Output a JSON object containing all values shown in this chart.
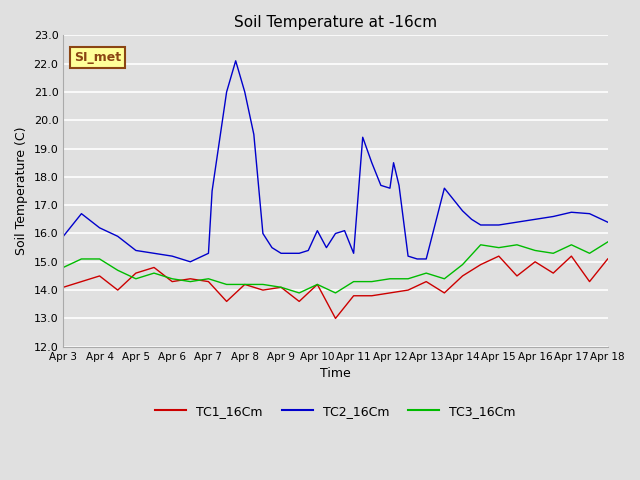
{
  "title": "Soil Temperature at -16cm",
  "xlabel": "Time",
  "ylabel": "Soil Temperature (C)",
  "ylim": [
    12.0,
    23.0
  ],
  "yticks": [
    12.0,
    13.0,
    14.0,
    15.0,
    16.0,
    17.0,
    18.0,
    19.0,
    20.0,
    21.0,
    22.0,
    23.0
  ],
  "x_tick_labels": [
    "Apr 3",
    "Apr 4",
    "Apr 5",
    "Apr 6",
    "Apr 7",
    "Apr 8",
    "Apr 9",
    "Apr 10",
    "Apr 11",
    "Apr 12",
    "Apr 13",
    "Apr 14",
    "Apr 15",
    "Apr 16",
    "Apr 17",
    "Apr 18"
  ],
  "bg_color": "#e0e0e0",
  "plot_bg_color": "#e0e0e0",
  "grid_color": "#ffffff",
  "annotation_text": "SI_met",
  "annotation_bg": "#ffff99",
  "annotation_border": "#8b4513",
  "TC1_color": "#cc0000",
  "TC2_color": "#0000cc",
  "TC3_color": "#00bb00",
  "TC1_label": "TC1_16Cm",
  "TC2_label": "TC2_16Cm",
  "TC3_label": "TC3_16Cm",
  "TC1_x": [
    0,
    0.5,
    1,
    1.5,
    2,
    2.5,
    3,
    3.5,
    4,
    4.5,
    5,
    5.5,
    6,
    6.5,
    7,
    7.5,
    8,
    8.5,
    9,
    9.5,
    10,
    10.5,
    11,
    11.5,
    12,
    12.5,
    13,
    13.5,
    14,
    14.5,
    15
  ],
  "TC1_y": [
    14.1,
    14.3,
    14.5,
    14.0,
    14.6,
    14.8,
    14.3,
    14.4,
    14.3,
    13.6,
    14.2,
    14.0,
    14.1,
    13.6,
    14.2,
    13.0,
    13.8,
    13.8,
    13.9,
    14.0,
    14.3,
    13.9,
    14.5,
    14.9,
    15.2,
    14.5,
    15.0,
    14.6,
    15.2,
    14.3,
    15.1
  ],
  "TC2_x": [
    0,
    0.5,
    1,
    1.5,
    2,
    2.5,
    3,
    3.5,
    4,
    4.1,
    4.5,
    4.75,
    5,
    5.25,
    5.5,
    5.75,
    6,
    6.25,
    6.5,
    6.75,
    7,
    7.25,
    7.5,
    7.75,
    8,
    8.25,
    8.5,
    8.75,
    9,
    9.1,
    9.25,
    9.5,
    9.75,
    10,
    10.5,
    11,
    11.25,
    11.5,
    12,
    12.5,
    13,
    13.5,
    14,
    14.5,
    15
  ],
  "TC2_y": [
    15.9,
    16.7,
    16.2,
    15.9,
    15.4,
    15.3,
    15.2,
    15.0,
    15.3,
    17.5,
    21.0,
    22.1,
    21.0,
    19.5,
    16.0,
    15.5,
    15.3,
    15.3,
    15.3,
    15.4,
    16.1,
    15.5,
    16.0,
    16.1,
    15.3,
    19.4,
    18.5,
    17.7,
    17.6,
    18.5,
    17.7,
    15.2,
    15.1,
    15.1,
    17.6,
    16.8,
    16.5,
    16.3,
    16.3,
    16.4,
    16.5,
    16.6,
    16.75,
    16.7,
    16.4
  ],
  "TC3_x": [
    0,
    0.5,
    1,
    1.5,
    2,
    2.5,
    3,
    3.5,
    4,
    4.5,
    5,
    5.5,
    6,
    6.5,
    7,
    7.5,
    8,
    8.5,
    9,
    9.5,
    10,
    10.5,
    11,
    11.5,
    12,
    12.5,
    13,
    13.5,
    14,
    14.5,
    15
  ],
  "TC3_y": [
    14.8,
    15.1,
    15.1,
    14.7,
    14.4,
    14.6,
    14.4,
    14.3,
    14.4,
    14.2,
    14.2,
    14.2,
    14.1,
    13.9,
    14.2,
    13.9,
    14.3,
    14.3,
    14.4,
    14.4,
    14.6,
    14.4,
    14.9,
    15.6,
    15.5,
    15.6,
    15.4,
    15.3,
    15.6,
    15.3,
    15.7
  ]
}
